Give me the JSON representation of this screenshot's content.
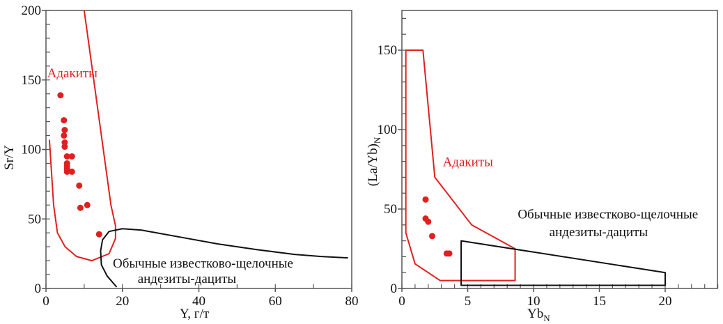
{
  "chart_data": [
    {
      "type": "scatter",
      "xlabel": "Y, г/т",
      "ylabel": "Sr/Y",
      "xlim": [
        0,
        80
      ],
      "ylim": [
        0,
        200
      ],
      "xticks": [
        "0",
        "20",
        "40",
        "60",
        "80"
      ],
      "yticks": [
        "0",
        "50",
        "100",
        "150",
        "200"
      ],
      "xtick_values": [
        0,
        20,
        40,
        60,
        80
      ],
      "ytick_values": [
        0,
        50,
        100,
        150,
        200
      ],
      "series": [
        {
          "name": "samples",
          "color": "#e02020",
          "points": [
            [
              3.8,
              139
            ],
            [
              4.7,
              121
            ],
            [
              4.9,
              114
            ],
            [
              4.7,
              110
            ],
            [
              4.9,
              105
            ],
            [
              4.9,
              102
            ],
            [
              5.5,
              95
            ],
            [
              6.8,
              95
            ],
            [
              5.5,
              90
            ],
            [
              5.5,
              88
            ],
            [
              5.5,
              86
            ],
            [
              5.5,
              84
            ],
            [
              6.8,
              84
            ],
            [
              8.7,
              74
            ],
            [
              9.0,
              58
            ],
            [
              10.8,
              60
            ],
            [
              13.9,
              39
            ]
          ]
        }
      ],
      "fields": [
        {
          "name": "Адакиты",
          "color": "#e02020",
          "curve": [
            [
              10,
              200
            ],
            [
              17,
              60
            ],
            [
              18.2,
              45
            ],
            [
              18.2,
              36
            ],
            [
              16.5,
              25
            ],
            [
              12,
              20
            ],
            [
              8,
              23
            ],
            [
              5,
              30
            ],
            [
              3,
              40
            ],
            [
              2,
              60
            ],
            [
              0.9,
              107
            ]
          ]
        },
        {
          "name": "Обычные известково-щелочные андезиты-дациты",
          "color": "#111111",
          "curve": [
            [
              18.5,
              1
            ],
            [
              16,
              9
            ],
            [
              14.5,
              17
            ],
            [
              14.3,
              27
            ],
            [
              14.8,
              35
            ],
            [
              16.5,
              41
            ],
            [
              20,
              43
            ],
            [
              25,
              42
            ],
            [
              35,
              37
            ],
            [
              45,
              32
            ],
            [
              55,
              28
            ],
            [
              65,
              24.5
            ],
            [
              72,
              23
            ],
            [
              79,
              22
            ]
          ]
        }
      ],
      "annotations": [
        {
          "text": "Адакиты",
          "color": "#e02020",
          "at": [
            0.3,
            152
          ]
        },
        {
          "text": "Обычные известково-щелочные",
          "color": "#111111",
          "at": [
            17.5,
            15
          ]
        },
        {
          "text": "андезиты-дациты",
          "color": "#111111",
          "at": [
            24,
            4
          ]
        }
      ]
    },
    {
      "type": "scatter",
      "xlabel": "Yb",
      "xlabel_sub": "N",
      "ylabel": "(La/Yb)",
      "ylabel_sub": "N",
      "xlim": [
        0,
        24
      ],
      "ylim": [
        0,
        175
      ],
      "xticks": [
        "0",
        "5",
        "10",
        "15",
        "20"
      ],
      "yticks": [
        "0",
        "50",
        "100",
        "150"
      ],
      "xtick_values": [
        0,
        5,
        10,
        15,
        20
      ],
      "ytick_values": [
        0,
        50,
        100,
        150
      ],
      "series": [
        {
          "name": "samples",
          "color": "#e02020",
          "points": [
            [
              1.8,
              56
            ],
            [
              1.8,
              44
            ],
            [
              2.0,
              42
            ],
            [
              2.3,
              33
            ],
            [
              3.4,
              22
            ],
            [
              3.6,
              22
            ]
          ]
        }
      ],
      "fields": [
        {
          "name": "Адакиты",
          "color": "#e02020",
          "polygon": [
            [
              0.3,
              150
            ],
            [
              1.6,
              150
            ],
            [
              2.5,
              70
            ],
            [
              5.3,
              40
            ],
            [
              8.6,
              25
            ],
            [
              8.6,
              5
            ],
            [
              2.9,
              5
            ],
            [
              1,
              15.5
            ],
            [
              0.3,
              35
            ]
          ]
        },
        {
          "name": "Обычные известково-щелочные андезиты-дациты",
          "color": "#111111",
          "polygon": [
            [
              4.5,
              30
            ],
            [
              20,
              10
            ],
            [
              20,
              2
            ],
            [
              4.5,
              2
            ]
          ]
        }
      ],
      "annotations": [
        {
          "text": "Адакиты",
          "color": "#e02020",
          "at": [
            3.1,
            77
          ]
        },
        {
          "text": "Обычные известково-щелочные",
          "color": "#111111",
          "at": [
            8.8,
            44
          ]
        },
        {
          "text": "андезиты-дациты",
          "color": "#111111",
          "at": [
            11.2,
            33
          ]
        }
      ]
    }
  ]
}
